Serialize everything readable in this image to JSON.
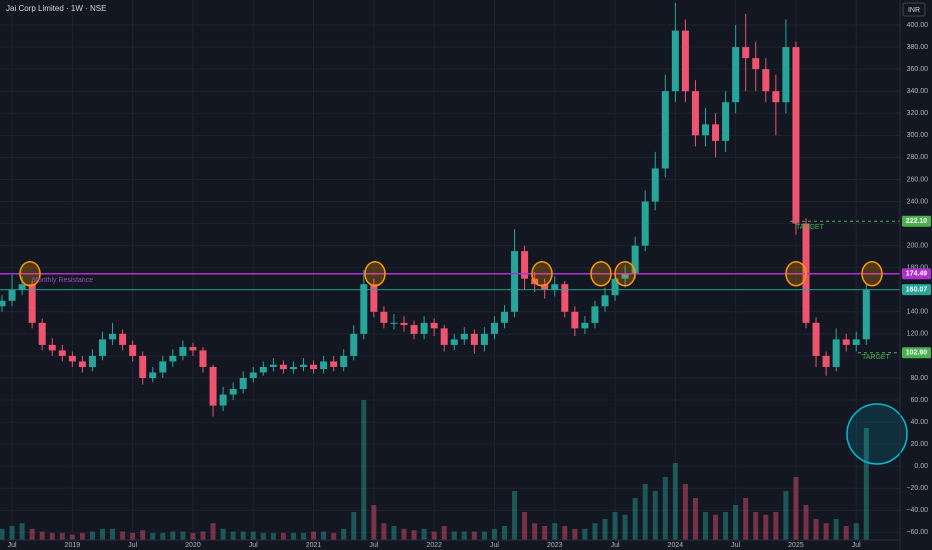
{
  "chart_data": {
    "type": "candlestick",
    "title": "Jai Corp Limited · 1W · NSE",
    "currency": "INR",
    "grid": true,
    "colors": {
      "up": "#26a69a",
      "down": "#ef5370"
    },
    "categories": [
      null,
      "Jul",
      null,
      null,
      null,
      null,
      null,
      "2019",
      null,
      null,
      null,
      null,
      null,
      "Jul",
      null,
      null,
      null,
      null,
      null,
      "2020",
      null,
      null,
      null,
      null,
      null,
      "Jul",
      null,
      null,
      null,
      null,
      null,
      "2021",
      null,
      null,
      null,
      null,
      null,
      "Jul",
      null,
      null,
      null,
      null,
      null,
      "2022",
      null,
      null,
      null,
      null,
      null,
      "Jul",
      null,
      null,
      null,
      null,
      null,
      "2023",
      null,
      null,
      null,
      null,
      null,
      "Jul",
      null,
      null,
      null,
      null,
      null,
      "2024",
      null,
      null,
      null,
      null,
      null,
      "Jul",
      null,
      null,
      null,
      null,
      null,
      "2025",
      null,
      null,
      null,
      null,
      null,
      "Jul",
      null
    ],
    "open": [
      145,
      150,
      160,
      165,
      130,
      110,
      105,
      100,
      95,
      90,
      100,
      115,
      120,
      110,
      100,
      80,
      85,
      95,
      100,
      108,
      105,
      90,
      55,
      65,
      70,
      80,
      85,
      90,
      92,
      88,
      90,
      92,
      88,
      95,
      90,
      100,
      120,
      165,
      140,
      130,
      130,
      128,
      120,
      130,
      125,
      110,
      115,
      120,
      110,
      120,
      130,
      140,
      195,
      170,
      165,
      160,
      165,
      140,
      125,
      130,
      145,
      155,
      170,
      175,
      200,
      240,
      270,
      340,
      395,
      340,
      300,
      310,
      295,
      330,
      380,
      370,
      360,
      340,
      330,
      380,
      220,
      130,
      100,
      90,
      115,
      110,
      115
    ],
    "high": [
      155,
      175,
      172,
      168,
      134,
      116,
      110,
      104,
      100,
      106,
      122,
      130,
      124,
      114,
      104,
      90,
      100,
      106,
      114,
      112,
      108,
      92,
      72,
      76,
      86,
      90,
      95,
      98,
      96,
      95,
      98,
      96,
      100,
      100,
      106,
      128,
      178,
      170,
      145,
      138,
      136,
      132,
      136,
      134,
      128,
      120,
      126,
      124,
      126,
      136,
      146,
      215,
      200,
      176,
      170,
      172,
      168,
      145,
      136,
      150,
      162,
      176,
      182,
      208,
      250,
      285,
      355,
      420,
      405,
      350,
      325,
      320,
      340,
      400,
      410,
      385,
      370,
      355,
      405,
      385,
      225,
      135,
      104,
      125,
      120,
      122,
      165
    ],
    "low": [
      140,
      145,
      155,
      125,
      105,
      100,
      95,
      90,
      85,
      86,
      96,
      110,
      105,
      95,
      74,
      76,
      80,
      90,
      96,
      100,
      85,
      45,
      50,
      60,
      66,
      76,
      82,
      86,
      84,
      84,
      86,
      84,
      84,
      86,
      86,
      96,
      115,
      135,
      125,
      124,
      122,
      115,
      115,
      118,
      104,
      105,
      110,
      102,
      104,
      115,
      125,
      135,
      160,
      158,
      152,
      154,
      135,
      118,
      120,
      125,
      140,
      150,
      162,
      170,
      195,
      232,
      262,
      330,
      330,
      290,
      290,
      280,
      285,
      320,
      340,
      340,
      330,
      300,
      320,
      210,
      125,
      90,
      82,
      86,
      104,
      104,
      110
    ],
    "close": [
      150,
      160,
      165,
      130,
      110,
      105,
      100,
      95,
      90,
      100,
      115,
      120,
      110,
      100,
      80,
      85,
      95,
      100,
      108,
      105,
      90,
      55,
      65,
      70,
      80,
      85,
      90,
      92,
      88,
      90,
      92,
      88,
      95,
      90,
      100,
      120,
      165,
      140,
      130,
      130,
      128,
      120,
      130,
      125,
      110,
      115,
      120,
      110,
      120,
      130,
      140,
      195,
      170,
      165,
      160,
      165,
      140,
      125,
      130,
      145,
      155,
      170,
      175,
      200,
      240,
      270,
      340,
      395,
      340,
      300,
      310,
      295,
      330,
      380,
      370,
      360,
      340,
      330,
      380,
      220,
      130,
      100,
      90,
      115,
      110,
      115,
      160
    ],
    "volume": [
      8,
      10,
      12,
      8,
      6,
      5,
      5,
      4,
      5,
      6,
      8,
      8,
      6,
      5,
      7,
      5,
      5,
      6,
      6,
      5,
      6,
      12,
      8,
      6,
      6,
      6,
      5,
      5,
      5,
      5,
      5,
      6,
      6,
      5,
      8,
      20,
      100,
      25,
      12,
      10,
      8,
      7,
      8,
      6,
      10,
      6,
      6,
      6,
      6,
      8,
      10,
      35,
      20,
      12,
      10,
      12,
      10,
      8,
      8,
      12,
      15,
      20,
      18,
      30,
      40,
      35,
      45,
      55,
      40,
      30,
      20,
      18,
      20,
      25,
      30,
      20,
      18,
      20,
      35,
      45,
      25,
      15,
      12,
      15,
      10,
      12,
      80
    ],
    "ylim": [
      -66.9,
      422.7
    ],
    "yticks": [
      {
        "value": 400,
        "label": "400.00"
      },
      {
        "value": 380,
        "label": "380.00"
      },
      {
        "value": 360,
        "label": "360.00"
      },
      {
        "value": 340,
        "label": "340.00"
      },
      {
        "value": 320,
        "label": "320.00"
      },
      {
        "value": 300,
        "label": "300.00"
      },
      {
        "value": 280,
        "label": "280.00"
      },
      {
        "value": 260,
        "label": "260.00"
      },
      {
        "value": 240,
        "label": "240.00"
      },
      {
        "value": 220,
        "label": "220.00"
      },
      {
        "value": 200,
        "label": "200.00"
      },
      {
        "value": 180,
        "label": "180.00"
      },
      {
        "value": 160,
        "label": "160.00"
      },
      {
        "value": 140,
        "label": "140.00"
      },
      {
        "value": 120,
        "label": "120.00"
      },
      {
        "value": 100,
        "label": "100.00"
      },
      {
        "value": 80,
        "label": "80.00"
      },
      {
        "value": 60,
        "label": "60.00"
      },
      {
        "value": 40,
        "label": "40.00"
      },
      {
        "value": 20,
        "label": "20.00"
      },
      {
        "value": 0,
        "label": "0.00"
      },
      {
        "value": -20,
        "label": "−20.00"
      },
      {
        "value": -40,
        "label": "−40.00"
      },
      {
        "value": -60,
        "label": "−60.00"
      }
    ],
    "levels": [
      {
        "value": 222.1,
        "label": "222.10",
        "color": "#4caf50",
        "style": "dashed"
      },
      {
        "value": 174.49,
        "color": "#b02fd0",
        "style": "solid"
      },
      {
        "value": 160.07,
        "color": "#26a69a",
        "style": "solid"
      },
      {
        "value": 102.9,
        "label": "102.90",
        "color": "#4caf50",
        "style": "dashed"
      }
    ],
    "annotations": [
      "TARGET",
      "TARGET",
      "Monthly Resistance"
    ]
  }
}
